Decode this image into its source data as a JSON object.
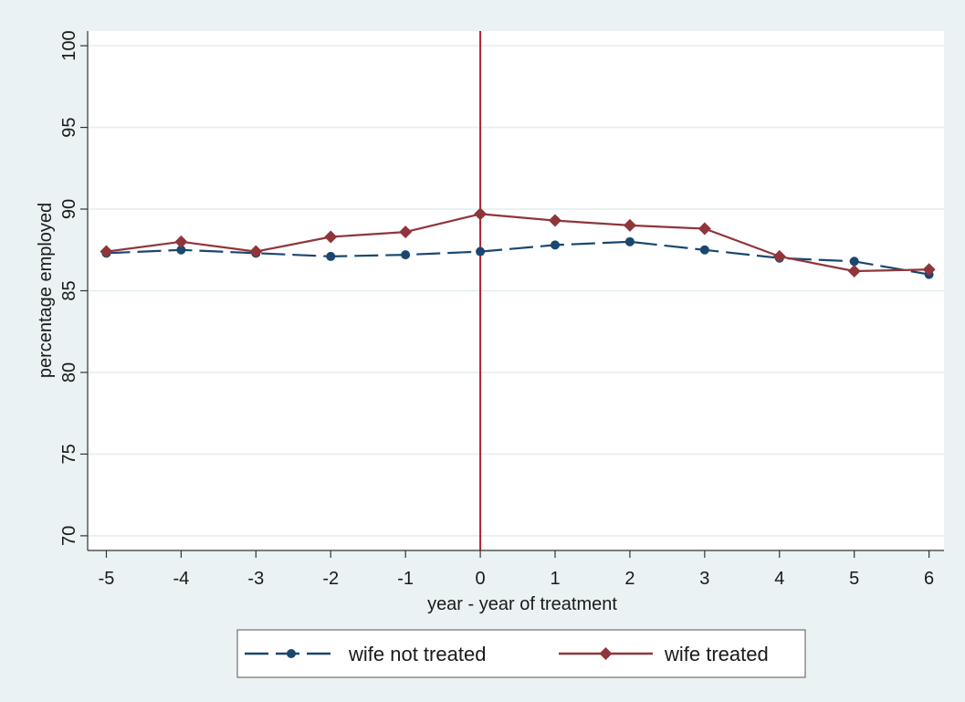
{
  "chart_data": {
    "type": "line",
    "title": "",
    "xlabel": "year - year of treatment",
    "ylabel": "percentage employed",
    "x": [
      -5,
      -4,
      -3,
      -2,
      -1,
      0,
      1,
      2,
      3,
      4,
      5,
      6
    ],
    "x_tick_labels": [
      "-5",
      "-4",
      "-3",
      "-2",
      "-1",
      "0",
      "1",
      "2",
      "3",
      "4",
      "5",
      "6"
    ],
    "xlim": [
      -5.25,
      6.2
    ],
    "ylim": [
      69.1,
      100.9
    ],
    "y_ticks": [
      70,
      75,
      80,
      85,
      90,
      95,
      100
    ],
    "y_tick_labels": [
      "70",
      "75",
      "80",
      "85",
      "90",
      "95",
      "100"
    ],
    "grid": true,
    "reference_line": {
      "axis": "x",
      "value": 0,
      "color": "#b2222a"
    },
    "legend": {
      "position": "bottom"
    },
    "series": [
      {
        "name": "wife not treated",
        "values": [
          87.3,
          87.5,
          87.3,
          87.1,
          87.2,
          87.4,
          87.8,
          88.0,
          87.5,
          87.0,
          86.8,
          86.0
        ],
        "color": "#1a476f",
        "line_style": "dashed",
        "marker": "circle"
      },
      {
        "name": "wife treated",
        "values": [
          87.4,
          88.0,
          87.4,
          88.3,
          88.6,
          89.7,
          89.3,
          89.0,
          88.8,
          87.1,
          86.2,
          86.3
        ],
        "color": "#90353b",
        "line_style": "solid",
        "marker": "diamond"
      }
    ]
  }
}
